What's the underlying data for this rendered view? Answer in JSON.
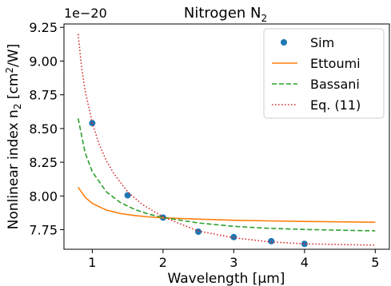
{
  "chart_data": {
    "type": "line",
    "title": "Nitrogen N",
    "title_sub": "2",
    "offset_text": "1e−20",
    "xlabel": "Wavelength [μm]",
    "ylabel": "Nonlinear index n",
    "ylabel_sub": "2",
    "ylabel_unit_pre": " [cm",
    "ylabel_unit_sup": "2",
    "ylabel_unit_post": "/W]",
    "xlim": [
      0.6,
      5.2
    ],
    "ylim": [
      7.605,
      9.275
    ],
    "xticks": [
      1,
      2,
      3,
      4,
      5
    ],
    "xtick_labels": [
      "1",
      "2",
      "3",
      "4",
      "5"
    ],
    "yticks": [
      7.75,
      8.0,
      8.25,
      8.5,
      8.75,
      9.0,
      9.25
    ],
    "ytick_labels": [
      "7.75",
      "8.00",
      "8.25",
      "8.50",
      "8.75",
      "9.00",
      "9.25"
    ],
    "grid": false,
    "legend_position": "top-right",
    "series": [
      {
        "name": "Sim",
        "style": "marker",
        "color": "#1f77b4",
        "x": [
          1.0,
          1.5,
          2.0,
          2.5,
          3.0,
          3.53,
          4.0
        ],
        "y": [
          8.54,
          8.005,
          7.84,
          7.735,
          7.695,
          7.665,
          7.645
        ]
      },
      {
        "name": "Ettoumi",
        "style": "solid",
        "color": "#ff7f0e",
        "x": [
          0.8,
          0.9,
          1.0,
          1.2,
          1.4,
          1.6,
          1.8,
          2.0,
          2.5,
          3.0,
          3.5,
          4.0,
          4.5,
          5.0
        ],
        "y": [
          8.065,
          7.99,
          7.945,
          7.895,
          7.87,
          7.855,
          7.845,
          7.838,
          7.828,
          7.82,
          7.815,
          7.811,
          7.808,
          7.805
        ]
      },
      {
        "name": "Bassani",
        "style": "dashed",
        "color": "#2ca02c",
        "x": [
          0.8,
          0.9,
          1.0,
          1.2,
          1.4,
          1.6,
          1.8,
          2.0,
          2.5,
          3.0,
          3.5,
          4.0,
          4.5,
          5.0
        ],
        "y": [
          8.575,
          8.32,
          8.18,
          8.03,
          7.95,
          7.9,
          7.865,
          7.84,
          7.8,
          7.775,
          7.76,
          7.752,
          7.746,
          7.742
        ]
      },
      {
        "name": "Eq. (11)",
        "style": "dotted",
        "color": "#d62728",
        "x": [
          0.8,
          0.85,
          0.9,
          1.0,
          1.1,
          1.2,
          1.3,
          1.5,
          1.7,
          2.0,
          2.5,
          3.0,
          3.5,
          4.0,
          4.5,
          5.0
        ],
        "y": [
          9.2,
          8.95,
          8.78,
          8.54,
          8.38,
          8.26,
          8.17,
          8.03,
          7.94,
          7.845,
          7.74,
          7.69,
          7.66,
          7.645,
          7.64,
          7.635
        ]
      }
    ]
  }
}
